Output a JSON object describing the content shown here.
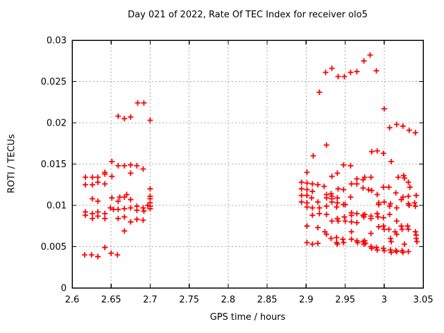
{
  "colors": {
    "background": "#ffffff",
    "frame": "#000000",
    "grid": "#a8a8a8",
    "text": "#000000",
    "marker": "#ff0000"
  },
  "chart_data": {
    "type": "scatter",
    "title": "Day 021 of 2022, Rate Of TEC Index for receiver olo5",
    "xlabel": "GPS time / hours",
    "ylabel": "ROTI / TECUs",
    "xlim": [
      2.6,
      3.05
    ],
    "ylim": [
      0,
      0.03
    ],
    "grid": true,
    "legend": false,
    "marker": {
      "shape": "plus",
      "color": "#ff0000",
      "half_size": 4,
      "stroke_width": 1.8
    },
    "xticks": {
      "values": [
        2.6,
        2.65,
        2.7,
        2.75,
        2.8,
        2.85,
        2.9,
        2.95,
        3.0,
        3.05
      ],
      "labels": [
        "2.6",
        "2.65",
        "2.7",
        "2.75",
        "2.8",
        "2.85",
        "2.9",
        "2.95",
        "3",
        "3.05"
      ]
    },
    "yticks": {
      "values": [
        0,
        0.005,
        0.01,
        0.015,
        0.02,
        0.025,
        0.03
      ],
      "labels": [
        "0",
        "0.005",
        "0.01",
        "0.015",
        "0.02",
        "0.025",
        "0.03"
      ]
    },
    "series": [
      {
        "name": "ROTI",
        "points": [
          [
            2.684,
            0.0224
          ],
          [
            2.692,
            0.0224
          ],
          [
            2.659,
            0.0208
          ],
          [
            2.667,
            0.0205
          ],
          [
            2.675,
            0.0207
          ],
          [
            2.7,
            0.0203
          ],
          [
            2.651,
            0.0153
          ],
          [
            2.659,
            0.0148
          ],
          [
            2.667,
            0.0148
          ],
          [
            2.675,
            0.0149
          ],
          [
            2.683,
            0.0148
          ],
          [
            2.691,
            0.0144
          ],
          [
            2.642,
            0.014
          ],
          [
            2.675,
            0.0139
          ],
          [
            2.617,
            0.0134
          ],
          [
            2.626,
            0.0134
          ],
          [
            2.633,
            0.0134
          ],
          [
            2.642,
            0.0138
          ],
          [
            2.651,
            0.0135
          ],
          [
            2.617,
            0.0125
          ],
          [
            2.626,
            0.0125
          ],
          [
            2.633,
            0.0128
          ],
          [
            2.642,
            0.0126
          ],
          [
            2.626,
            0.0108
          ],
          [
            2.633,
            0.0105
          ],
          [
            2.651,
            0.0109
          ],
          [
            2.659,
            0.0105
          ],
          [
            2.661,
            0.011
          ],
          [
            2.667,
            0.011
          ],
          [
            2.67,
            0.0113
          ],
          [
            2.675,
            0.0107
          ],
          [
            2.7,
            0.012
          ],
          [
            2.7,
            0.0111
          ],
          [
            2.7,
            0.0108
          ],
          [
            2.7,
            0.0103
          ],
          [
            2.7,
            0.0099
          ],
          [
            2.7,
            0.0096
          ],
          [
            2.649,
            0.0097
          ],
          [
            2.653,
            0.0095
          ],
          [
            2.659,
            0.0095
          ],
          [
            2.667,
            0.0096
          ],
          [
            2.675,
            0.0097
          ],
          [
            2.683,
            0.0099
          ],
          [
            2.683,
            0.0094
          ],
          [
            2.691,
            0.0097
          ],
          [
            2.692,
            0.0093
          ],
          [
            2.697,
            0.01
          ],
          [
            2.617,
            0.0092
          ],
          [
            2.617,
            0.0088
          ],
          [
            2.626,
            0.009
          ],
          [
            2.626,
            0.0084
          ],
          [
            2.633,
            0.0092
          ],
          [
            2.633,
            0.0087
          ],
          [
            2.642,
            0.009
          ],
          [
            2.642,
            0.0084
          ],
          [
            2.659,
            0.0084
          ],
          [
            2.667,
            0.0086
          ],
          [
            2.675,
            0.008
          ],
          [
            2.683,
            0.0083
          ],
          [
            2.691,
            0.0082
          ],
          [
            2.667,
            0.0069
          ],
          [
            2.616,
            0.004
          ],
          [
            2.625,
            0.004
          ],
          [
            2.633,
            0.0038
          ],
          [
            2.642,
            0.0049
          ],
          [
            2.65,
            0.0042
          ],
          [
            2.658,
            0.004
          ],
          [
            2.917,
            0.0237
          ],
          [
            2.925,
            0.0261
          ],
          [
            2.933,
            0.0266
          ],
          [
            2.941,
            0.0256
          ],
          [
            2.949,
            0.0256
          ],
          [
            2.957,
            0.0261
          ],
          [
            2.965,
            0.0262
          ],
          [
            2.974,
            0.0275
          ],
          [
            2.982,
            0.0282
          ],
          [
            2.99,
            0.0263
          ],
          [
            3.0,
            0.0217
          ],
          [
            3.007,
            0.0194
          ],
          [
            3.016,
            0.0198
          ],
          [
            3.024,
            0.0196
          ],
          [
            3.032,
            0.0191
          ],
          [
            3.04,
            0.0188
          ],
          [
            2.909,
            0.016
          ],
          [
            2.926,
            0.0173
          ],
          [
            2.984,
            0.0165
          ],
          [
            2.991,
            0.0166
          ],
          [
            2.999,
            0.0163
          ],
          [
            3.009,
            0.0153
          ],
          [
            2.948,
            0.0149
          ],
          [
            2.957,
            0.0148
          ],
          [
            2.901,
            0.014
          ],
          [
            2.933,
            0.0135
          ],
          [
            2.94,
            0.0139
          ],
          [
            2.975,
            0.0134
          ],
          [
            2.983,
            0.0134
          ],
          [
            3.018,
            0.0134
          ],
          [
            3.025,
            0.0136
          ],
          [
            3.026,
            0.0133
          ],
          [
            3.031,
            0.0128
          ],
          [
            2.894,
            0.0128
          ],
          [
            2.901,
            0.0127
          ],
          [
            2.908,
            0.0126
          ],
          [
            2.915,
            0.0125
          ],
          [
            2.923,
            0.0123
          ],
          [
            2.894,
            0.012
          ],
          [
            2.901,
            0.0119
          ],
          [
            2.908,
            0.0117
          ],
          [
            2.941,
            0.012
          ],
          [
            2.948,
            0.0119
          ],
          [
            2.958,
            0.0126
          ],
          [
            2.965,
            0.0126
          ],
          [
            2.965,
            0.0132
          ],
          [
            2.973,
            0.0131
          ],
          [
            2.973,
            0.0121
          ],
          [
            2.98,
            0.0119
          ],
          [
            2.984,
            0.0118
          ],
          [
            2.999,
            0.0122
          ],
          [
            3.006,
            0.0122
          ],
          [
            3.033,
            0.0122
          ],
          [
            2.894,
            0.0112
          ],
          [
            2.901,
            0.0112
          ],
          [
            2.907,
            0.0109
          ],
          [
            2.926,
            0.0113
          ],
          [
            2.932,
            0.0114
          ],
          [
            2.933,
            0.0111
          ],
          [
            2.926,
            0.0109
          ],
          [
            2.933,
            0.0108
          ],
          [
            2.94,
            0.0109
          ],
          [
            2.957,
            0.011
          ],
          [
            2.991,
            0.0113
          ],
          [
            3.015,
            0.0115
          ],
          [
            3.024,
            0.011
          ],
          [
            3.031,
            0.0111
          ],
          [
            3.041,
            0.0112
          ],
          [
            2.894,
            0.0104
          ],
          [
            2.901,
            0.0103
          ],
          [
            2.915,
            0.0104
          ],
          [
            2.933,
            0.0104
          ],
          [
            2.94,
            0.0103
          ],
          [
            2.95,
            0.0101
          ],
          [
            2.993,
            0.0103
          ],
          [
            3.0,
            0.0104
          ],
          [
            3.008,
            0.0102
          ],
          [
            3.022,
            0.0107
          ],
          [
            3.031,
            0.0102
          ],
          [
            3.039,
            0.0103
          ],
          [
            2.901,
            0.0098
          ],
          [
            2.908,
            0.0097
          ],
          [
            2.917,
            0.0097
          ],
          [
            2.926,
            0.0099
          ],
          [
            2.939,
            0.0098
          ],
          [
            2.948,
            0.0101
          ],
          [
            2.993,
            0.0101
          ],
          [
            3.007,
            0.0099
          ],
          [
            3.016,
            0.0097
          ],
          [
            3.032,
            0.01
          ],
          [
            3.04,
            0.0099
          ],
          [
            2.908,
            0.0088
          ],
          [
            2.917,
            0.009
          ],
          [
            2.926,
            0.0089
          ],
          [
            2.933,
            0.0081
          ],
          [
            2.94,
            0.0084
          ],
          [
            2.941,
            0.0081
          ],
          [
            2.949,
            0.0086
          ],
          [
            2.95,
            0.0081
          ],
          [
            2.958,
            0.0091
          ],
          [
            2.958,
            0.0088
          ],
          [
            2.958,
            0.008
          ],
          [
            2.965,
            0.009
          ],
          [
            2.965,
            0.0079
          ],
          [
            2.973,
            0.0088
          ],
          [
            2.974,
            0.0086
          ],
          [
            2.975,
            0.0089
          ],
          [
            2.983,
            0.0087
          ],
          [
            2.983,
            0.0084
          ],
          [
            2.991,
            0.009
          ],
          [
            2.992,
            0.0086
          ],
          [
            2.999,
            0.0085
          ],
          [
            3.007,
            0.0089
          ],
          [
            3.016,
            0.0081
          ],
          [
            2.901,
            0.0075
          ],
          [
            2.915,
            0.0073
          ],
          [
            2.924,
            0.0068
          ],
          [
            2.926,
            0.0065
          ],
          [
            2.932,
            0.006
          ],
          [
            2.939,
            0.0061
          ],
          [
            2.947,
            0.0059
          ],
          [
            2.948,
            0.0055
          ],
          [
            2.958,
            0.0068
          ],
          [
            2.958,
            0.0059
          ],
          [
            2.965,
            0.0057
          ],
          [
            2.966,
            0.0055
          ],
          [
            2.973,
            0.0056
          ],
          [
            2.974,
            0.0053
          ],
          [
            2.983,
            0.0066
          ],
          [
            2.993,
            0.0074
          ],
          [
            2.999,
            0.0075
          ],
          [
            3.0,
            0.0071
          ],
          [
            3.006,
            0.0071
          ],
          [
            3.014,
            0.0068
          ],
          [
            3.016,
            0.0065
          ],
          [
            3.022,
            0.0075
          ],
          [
            3.023,
            0.0071
          ],
          [
            3.03,
            0.0075
          ],
          [
            3.031,
            0.0071
          ],
          [
            3.04,
            0.0068
          ],
          [
            3.041,
            0.0064
          ],
          [
            3.041,
            0.006
          ],
          [
            3.042,
            0.0056
          ],
          [
            2.975,
            0.0057
          ],
          [
            2.976,
            0.0054
          ],
          [
            3.008,
            0.006
          ],
          [
            3.009,
            0.0056
          ],
          [
            3.026,
            0.0053
          ],
          [
            2.939,
            0.0055
          ],
          [
            2.94,
            0.0053
          ],
          [
            2.901,
            0.0055
          ],
          [
            2.908,
            0.0053
          ],
          [
            2.915,
            0.0054
          ],
          [
            2.983,
            0.005
          ],
          [
            2.984,
            0.0048
          ],
          [
            2.99,
            0.0049
          ],
          [
            2.991,
            0.0046
          ],
          [
            2.999,
            0.0048
          ],
          [
            3.0,
            0.0045
          ],
          [
            3.008,
            0.0046
          ],
          [
            3.009,
            0.0043
          ],
          [
            3.015,
            0.0045
          ],
          [
            3.016,
            0.0044
          ],
          [
            3.023,
            0.0045
          ],
          [
            3.024,
            0.0043
          ],
          [
            3.031,
            0.0044
          ]
        ]
      }
    ]
  }
}
